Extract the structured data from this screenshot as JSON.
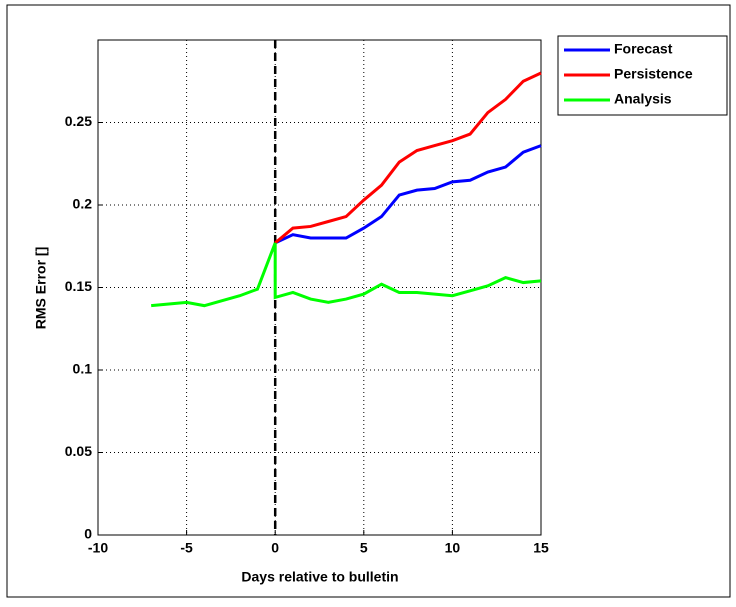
{
  "chart_data": {
    "type": "line",
    "xlabel": "Days relative to bulletin",
    "ylabel": "RMS Error []",
    "xlim": [
      -10,
      15
    ],
    "xticks": [
      -10,
      -5,
      0,
      5,
      10,
      15
    ],
    "ylim": [
      0,
      0.3
    ],
    "yticks": [
      0,
      0.05,
      0.1,
      0.15,
      0.2,
      0.25
    ],
    "grid": true,
    "vline_x": 0,
    "legend": "outside-right",
    "series": [
      {
        "name": "Forecast",
        "color": "#0000ff",
        "x": [
          0,
          1,
          2,
          3,
          4,
          5,
          6,
          7,
          8,
          9,
          10,
          11,
          12,
          13,
          14,
          15
        ],
        "values": [
          0.177,
          0.182,
          0.18,
          0.18,
          0.18,
          0.186,
          0.193,
          0.206,
          0.209,
          0.21,
          0.214,
          0.215,
          0.22,
          0.223,
          0.232,
          0.236
        ]
      },
      {
        "name": "Persistence",
        "color": "#ff0000",
        "x": [
          0,
          1,
          2,
          3,
          4,
          5,
          6,
          7,
          8,
          9,
          10,
          11,
          12,
          13,
          14,
          15
        ],
        "values": [
          0.177,
          0.186,
          0.187,
          0.19,
          0.193,
          0.203,
          0.212,
          0.226,
          0.233,
          0.236,
          0.239,
          0.243,
          0.256,
          0.264,
          0.275,
          0.28
        ]
      },
      {
        "name": "Analysis",
        "color": "#00ff00",
        "x": [
          -7,
          -6,
          -5,
          -4,
          -3,
          -2,
          -1,
          0,
          0,
          1,
          2,
          3,
          4,
          5,
          6,
          7,
          8,
          9,
          10,
          11,
          12,
          13,
          14,
          15
        ],
        "values": [
          0.139,
          0.14,
          0.141,
          0.139,
          0.142,
          0.145,
          0.149,
          0.177,
          0.144,
          0.147,
          0.143,
          0.141,
          0.143,
          0.146,
          0.152,
          0.147,
          0.147,
          0.146,
          0.145,
          0.148,
          0.151,
          0.156,
          0.153,
          0.154
        ]
      }
    ]
  }
}
